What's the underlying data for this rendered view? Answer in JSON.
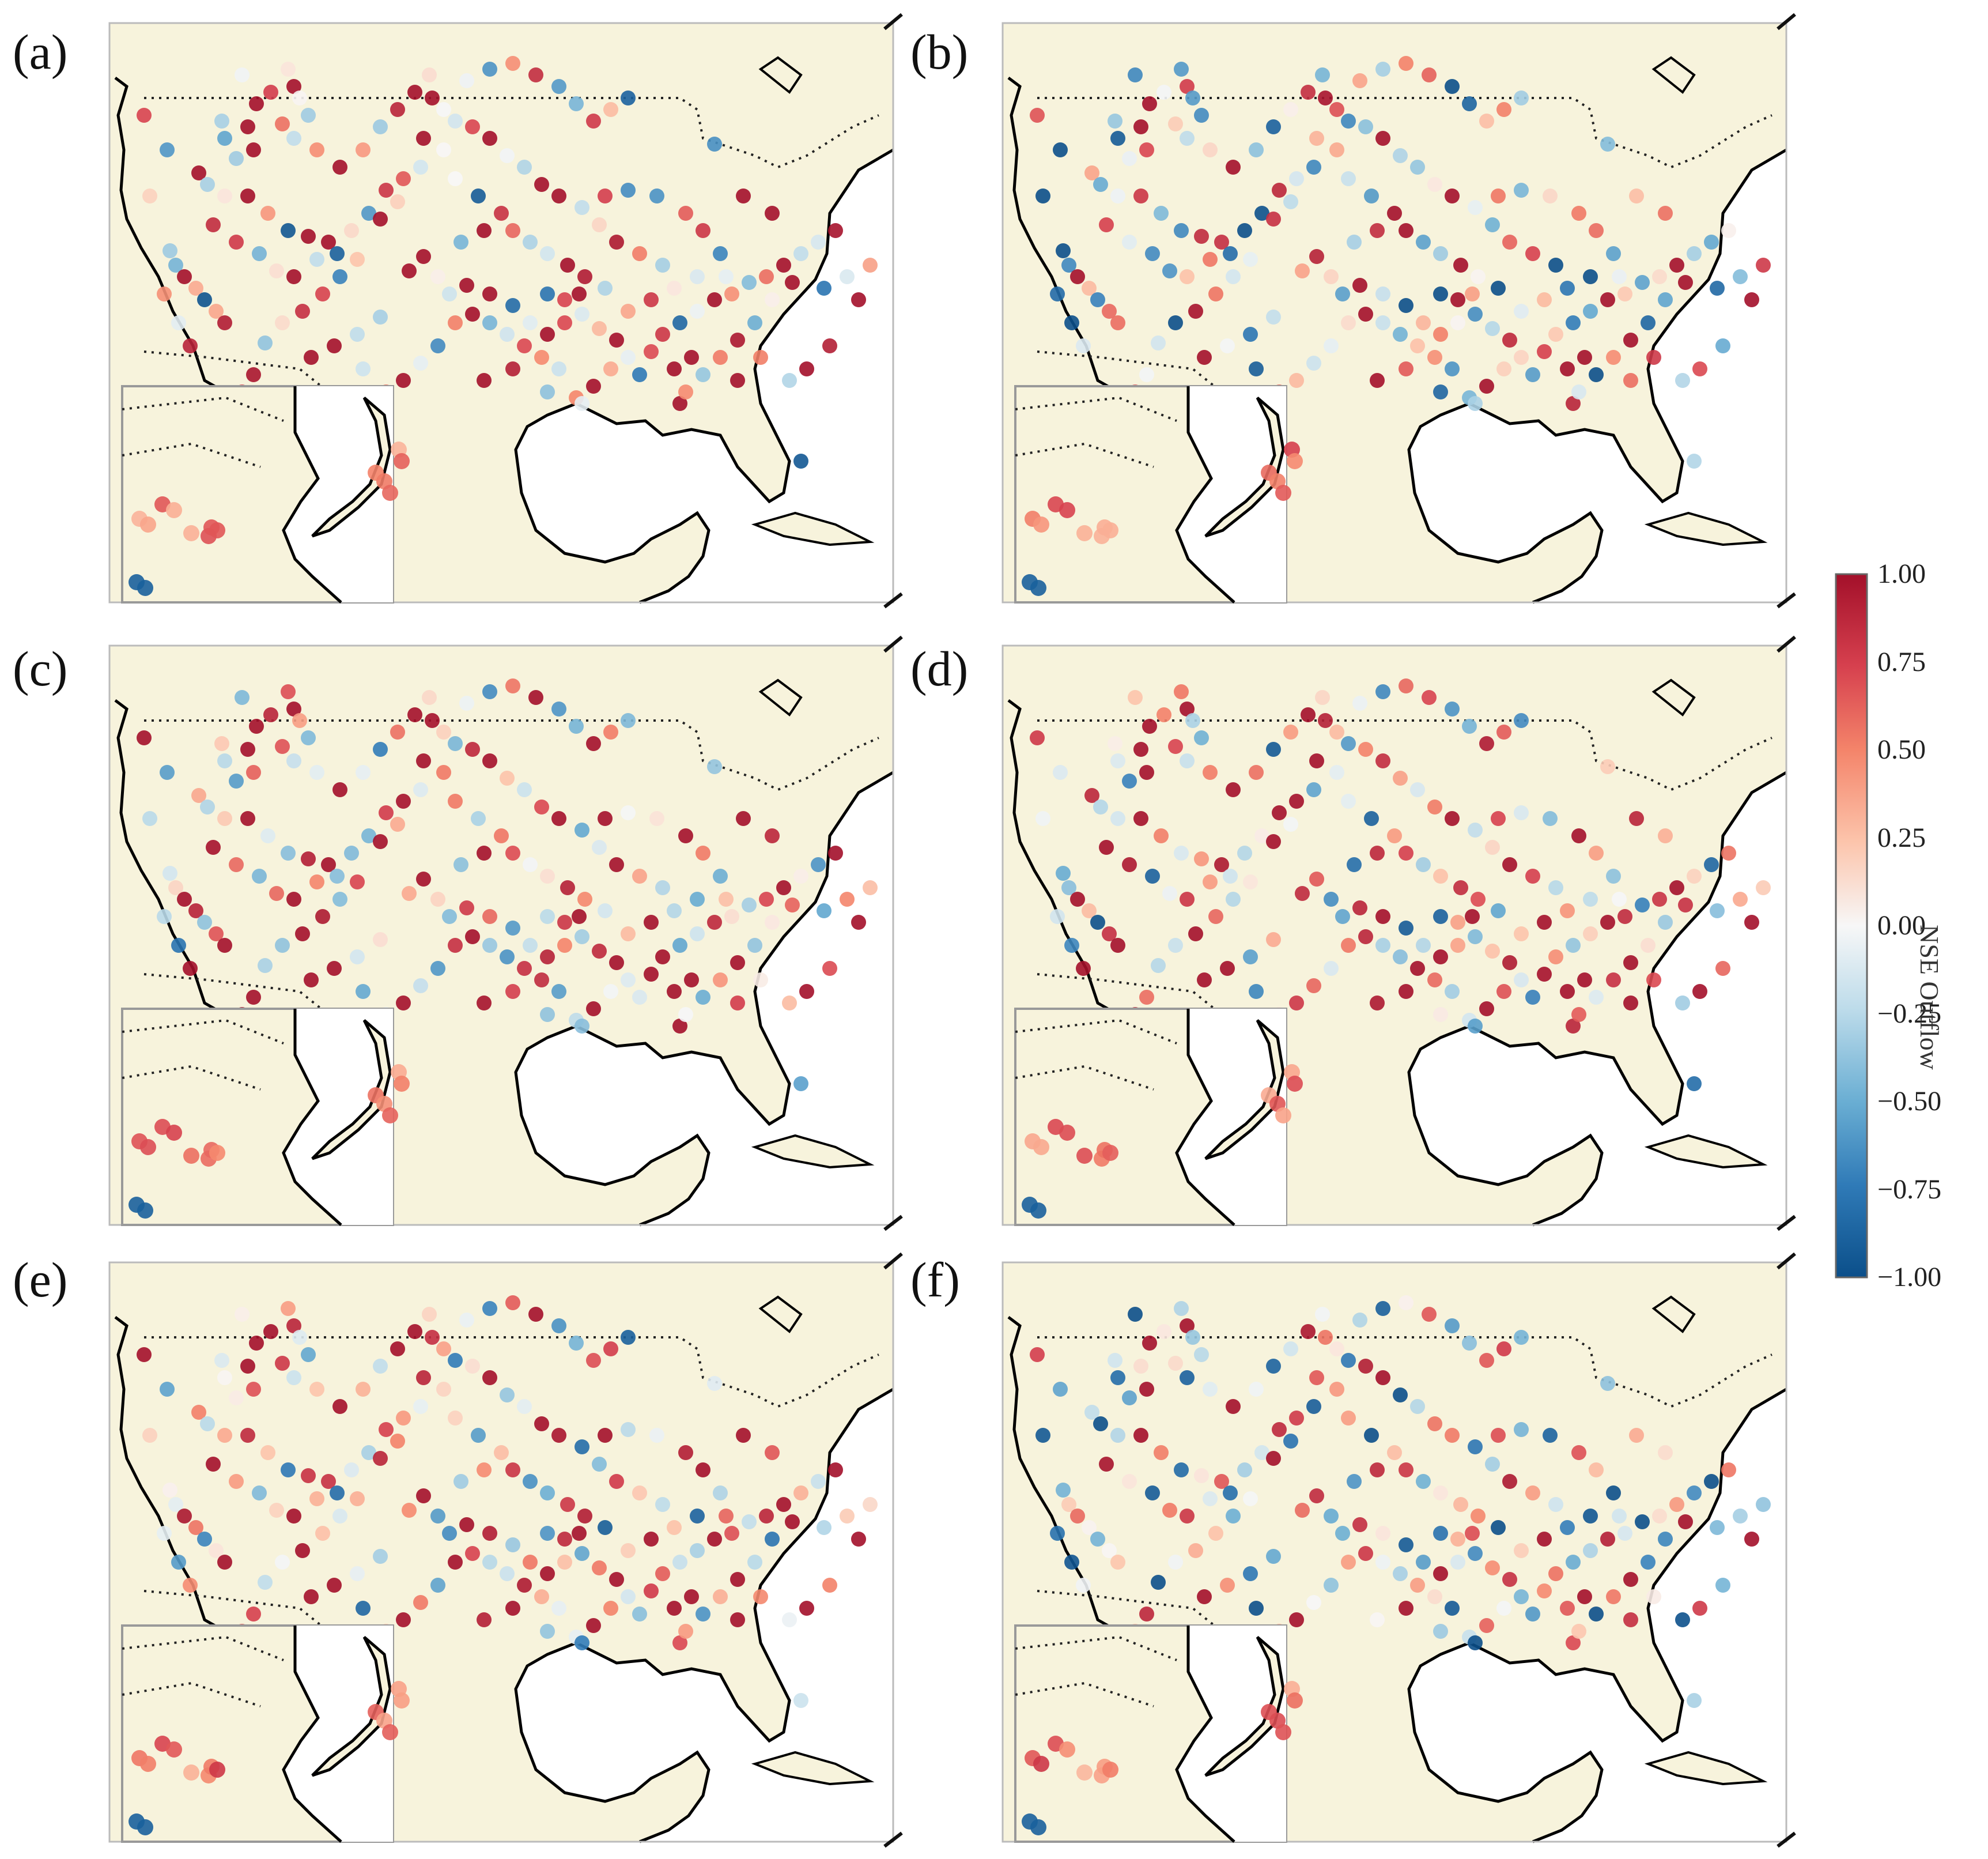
{
  "panels": [
    {
      "label": "(a)",
      "variant": 0
    },
    {
      "label": "(b)",
      "variant": 1
    },
    {
      "label": "(c)",
      "variant": 2
    },
    {
      "label": "(d)",
      "variant": 3
    },
    {
      "label": "(e)",
      "variant": 4
    },
    {
      "label": "(f)",
      "variant": 5
    }
  ],
  "colorbar": {
    "label": "NSE Outflow",
    "vmin": -1.0,
    "vmax": 1.0,
    "ticks": [
      "1.00",
      "0.75",
      "0.50",
      "0.25",
      "0.00",
      "−0.25",
      "−0.50",
      "−0.75",
      "−1.00"
    ],
    "colormap": "RdBu_r",
    "low_color": "#0b4f8a",
    "mid_color": "#f7f7f7",
    "high_color": "#a3102a"
  },
  "map": {
    "land_color": "#f7f3dc",
    "ocean_color": "#ffffff",
    "coast_color": "#000000",
    "border_style": "dotted"
  }
}
